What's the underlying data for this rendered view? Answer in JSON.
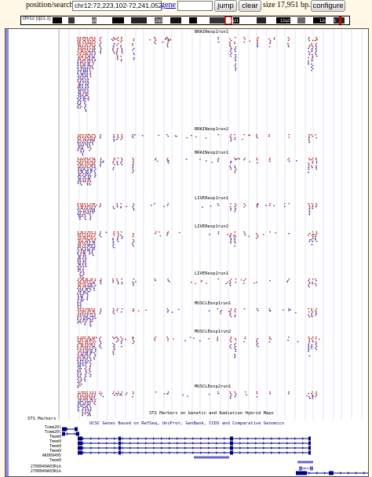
{
  "toolbar": {
    "position_label": "position/search",
    "position_value": "chr12:72,223,102-72,241,052",
    "gene_link": "gene",
    "jump_label": "jump",
    "clear_label": "clear",
    "size_text": "size 17,951 bp.",
    "configure_label": "configure"
  },
  "ideogram": {
    "chrom_label": "chr12 (q21.1)",
    "band_labels": [
      "12p13.1",
      "12q13",
      "12q21.1",
      "12q23",
      "12q24.1"
    ]
  },
  "tracks": {
    "signal_tracks": [
      "BRAINexp1run1",
      "BRAINexp1run2",
      "BRAINexp2run1",
      "LIVERexp1run1",
      "LIVERexp1run2",
      "LIVERexp2run1",
      "MUSCLEexp1run1",
      "MUSCLEexp1run2",
      "MUSCLEexp2run1"
    ],
    "sts_side_label": "STS Markers",
    "sts_center_label": "STS Markers on Genetic and Radiation Hybrid Maps",
    "ucsc_center_label": "UCSC Genes Based on RefSeq, UniProt, GenBank, CCDS and Comparative Genomics",
    "gene_names": [
      "Tomm20l",
      "Tomm20l",
      "Tmem9",
      "Tmem9",
      "Tmem9",
      "Tmem9",
      "AK009495",
      "Tmem9",
      "2700049A03Rik",
      "2700049A03Rik"
    ]
  },
  "colors": {
    "background": "#fff8e6",
    "signal_red": "#b22222",
    "signal_blue": "#2222aa",
    "gene_navy": "#000080",
    "gene_light": "#6666cc"
  }
}
